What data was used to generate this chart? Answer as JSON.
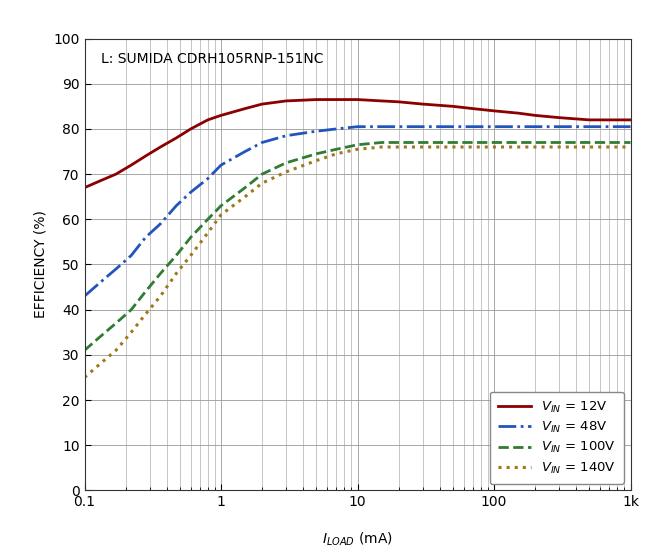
{
  "title": "L: SUMIDA CDRH105RNP-151NC",
  "ylabel": "EFFICIENCY (%)",
  "xlim": [
    0.1,
    1000
  ],
  "ylim": [
    0,
    100
  ],
  "background_color": "#ffffff",
  "grid_color": "#999999",
  "border_color": "#bbbbbb",
  "series": [
    {
      "label": "$V_{IN}$ = 12V",
      "color": "#8b0000",
      "linestyle": "solid",
      "linewidth": 2.0,
      "x": [
        0.1,
        0.13,
        0.17,
        0.22,
        0.28,
        0.36,
        0.47,
        0.6,
        0.8,
        1.0,
        1.5,
        2.0,
        3.0,
        5.0,
        7.0,
        10,
        15,
        20,
        30,
        50,
        70,
        100,
        150,
        200,
        300,
        500,
        700,
        1000
      ],
      "y": [
        67,
        68.5,
        70,
        72,
        74,
        76,
        78,
        80,
        82,
        83,
        84.5,
        85.5,
        86.2,
        86.5,
        86.5,
        86.5,
        86.2,
        86.0,
        85.5,
        85.0,
        84.5,
        84.0,
        83.5,
        83.0,
        82.5,
        82.0,
        82.0,
        82.0
      ]
    },
    {
      "label": "$V_{IN}$ = 48V",
      "color": "#2255bb",
      "linestyle": "dashdot",
      "linewidth": 2.0,
      "x": [
        0.1,
        0.13,
        0.17,
        0.22,
        0.28,
        0.36,
        0.47,
        0.6,
        0.8,
        1.0,
        1.5,
        2.0,
        3.0,
        5.0,
        7.0,
        10,
        15,
        20,
        30,
        50,
        70,
        100,
        150,
        200,
        300,
        500,
        700,
        1000
      ],
      "y": [
        43,
        46,
        49,
        52,
        56,
        59,
        63,
        66,
        69,
        72,
        75,
        77,
        78.5,
        79.5,
        80,
        80.5,
        80.5,
        80.5,
        80.5,
        80.5,
        80.5,
        80.5,
        80.5,
        80.5,
        80.5,
        80.5,
        80.5,
        80.5
      ]
    },
    {
      "label": "$V_{IN}$ = 100V",
      "color": "#2e7d32",
      "linestyle": "dashed",
      "linewidth": 2.0,
      "x": [
        0.1,
        0.13,
        0.17,
        0.22,
        0.28,
        0.36,
        0.47,
        0.6,
        0.8,
        1.0,
        1.5,
        2.0,
        3.0,
        5.0,
        7.0,
        10,
        15,
        20,
        30,
        50,
        70,
        100,
        150,
        200,
        300,
        500,
        700,
        1000
      ],
      "y": [
        31,
        34,
        37,
        40,
        44,
        48,
        52,
        56,
        60,
        63,
        67,
        70,
        72.5,
        74.5,
        75.5,
        76.5,
        77.0,
        77.0,
        77.0,
        77.0,
        77.0,
        77.0,
        77.0,
        77.0,
        77.0,
        77.0,
        77.0,
        77.0
      ]
    },
    {
      "label": "$V_{IN}$ = 140V",
      "color": "#9b7a1a",
      "linestyle": "dotted",
      "linewidth": 2.2,
      "x": [
        0.1,
        0.13,
        0.17,
        0.22,
        0.28,
        0.36,
        0.47,
        0.6,
        0.8,
        1.0,
        1.5,
        2.0,
        3.0,
        5.0,
        7.0,
        10,
        15,
        20,
        30,
        50,
        70,
        100,
        150,
        200,
        300,
        500,
        700,
        1000
      ],
      "y": [
        25,
        28,
        31,
        35,
        39,
        43,
        48,
        52,
        57,
        61,
        65,
        68,
        70.5,
        73.0,
        74.5,
        75.5,
        76.0,
        76.0,
        76.0,
        76.0,
        76.0,
        76.0,
        76.0,
        76.0,
        76.0,
        76.0,
        76.0,
        76.0
      ]
    }
  ]
}
